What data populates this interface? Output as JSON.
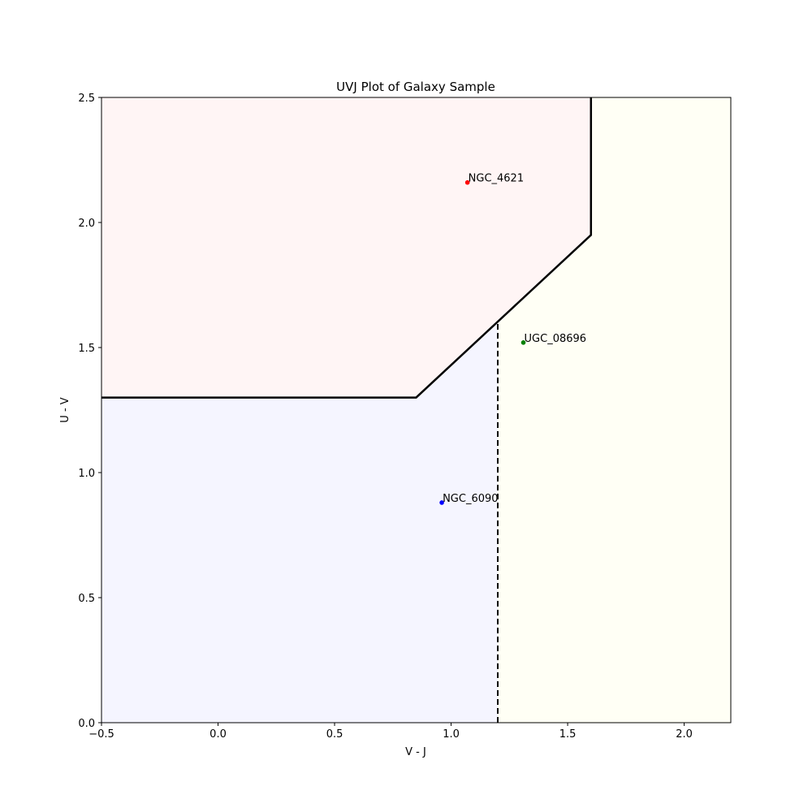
{
  "chart_data": {
    "type": "scatter",
    "title": "UVJ Plot of Galaxy Sample",
    "xlabel": "V - J",
    "ylabel": "U - V",
    "xlim": [
      -0.5,
      2.2
    ],
    "ylim": [
      0.0,
      2.5
    ],
    "grid": false,
    "xticks": [
      "−0.5",
      "0.0",
      "0.5",
      "1.0",
      "1.5",
      "2.0"
    ],
    "yticks": [
      "0.0",
      "0.5",
      "1.0",
      "1.5",
      "2.0",
      "2.5"
    ],
    "xtick_values": [
      -0.5,
      0.0,
      0.5,
      1.0,
      1.5,
      2.0
    ],
    "ytick_values": [
      0.0,
      0.5,
      1.0,
      1.5,
      2.0,
      2.5
    ],
    "points": [
      {
        "label": "NGC_4621",
        "x": 1.07,
        "y": 2.16,
        "color": "#ff0000"
      },
      {
        "label": "UGC_08696",
        "x": 1.31,
        "y": 1.52,
        "color": "#008000"
      },
      {
        "label": "NGC_6090",
        "x": 0.96,
        "y": 0.88,
        "color": "#0000ff"
      }
    ],
    "regions": [
      {
        "name": "quiescent",
        "color": "#fff5f5",
        "polygon": [
          [
            -0.5,
            2.5
          ],
          [
            -0.5,
            1.3
          ],
          [
            0.85,
            1.3
          ],
          [
            1.6,
            1.95
          ],
          [
            1.6,
            2.5
          ]
        ]
      },
      {
        "name": "star-forming",
        "color": "#f5f5ff",
        "polygon": [
          [
            -0.5,
            0.0
          ],
          [
            -0.5,
            1.3
          ],
          [
            0.85,
            1.3
          ],
          [
            1.2,
            1.6033
          ],
          [
            1.2,
            0.0
          ]
        ]
      },
      {
        "name": "dusty",
        "color": "#fffff5",
        "polygon": [
          [
            1.2,
            0.0
          ],
          [
            1.2,
            1.6033
          ],
          [
            1.6,
            1.95
          ],
          [
            1.6,
            2.5
          ],
          [
            2.2,
            2.5
          ],
          [
            2.2,
            0.0
          ]
        ]
      }
    ],
    "boundary": [
      [
        -0.5,
        1.3
      ],
      [
        0.85,
        1.3
      ],
      [
        1.6,
        1.95
      ],
      [
        1.6,
        2.5
      ]
    ],
    "divider": [
      [
        1.2,
        0.0
      ],
      [
        1.2,
        1.6033
      ]
    ]
  }
}
